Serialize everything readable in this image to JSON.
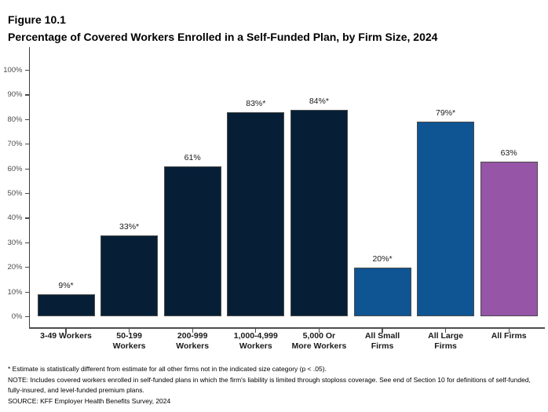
{
  "figure": {
    "label": "Figure 10.1",
    "title": "Percentage of Covered Workers Enrolled in a Self-Funded Plan, by Firm Size, 2024"
  },
  "chart_data": {
    "type": "bar",
    "title": "Percentage of Covered Workers Enrolled in a Self-Funded Plan, by Firm Size, 2024",
    "categories": [
      "3-49 Workers",
      "50-199\nWorkers",
      "200-999\nWorkers",
      "1,000-4,999\nWorkers",
      "5,000 Or\nMore Workers",
      "All Small\nFirms",
      "All Large\nFirms",
      "All Firms"
    ],
    "values": [
      9,
      33,
      61,
      83,
      84,
      20,
      79,
      63
    ],
    "value_labels": [
      "9%*",
      "33%*",
      "61%",
      "83%*",
      "84%*",
      "20%*",
      "79%*",
      "63%"
    ],
    "bar_colors": [
      "#061F37",
      "#061F37",
      "#061F37",
      "#061F37",
      "#061F37",
      "#0F5493",
      "#0F5493",
      "#9655A6"
    ],
    "xlabel": "",
    "ylabel": "",
    "ylim": [
      0,
      100
    ],
    "ytick_step": 10,
    "ytick_suffix": "%",
    "grid": false,
    "legend": false,
    "colors": {
      "firm_size_bars": "#061F37",
      "all_small_large_bars": "#0F5493",
      "all_firms_bar": "#9655A6",
      "axis": "#4d4d4d"
    }
  },
  "footnotes": {
    "asterisk": "* Estimate is statistically different from estimate for all other firms not in the indicated size category (p < .05).",
    "note": "NOTE: Includes covered workers enrolled in self-funded plans in which the firm's liability is limited through stoploss coverage. See end of Section 10 for definitions of self-funded, fully-insured, and level-funded premium plans.",
    "source": "SOURCE: KFF Employer Health Benefits Survey, 2024"
  }
}
